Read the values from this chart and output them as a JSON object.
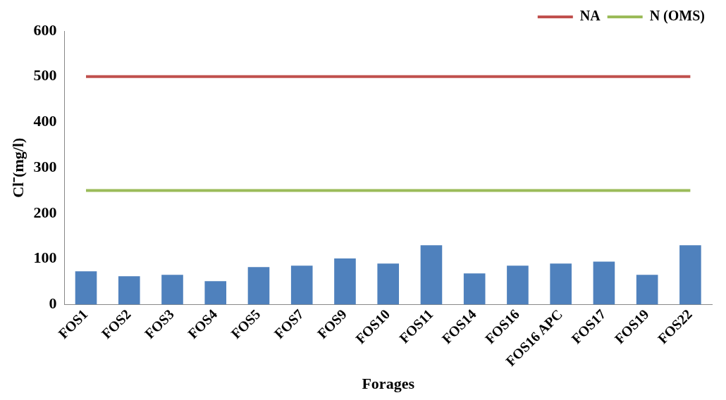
{
  "chart_data": {
    "type": "bar",
    "xlabel": "Forages",
    "ylabel": "Cl⁻(mg/l)",
    "categories": [
      "FOS1",
      "FOS2",
      "FOS3",
      "FOS4",
      "FOS5",
      "FOS7",
      "FOS9",
      "FOS10",
      "FOS11",
      "FOS14",
      "FOS16",
      "FOS16 APC",
      "FOS17",
      "FOS19",
      "FOS22"
    ],
    "series": [
      {
        "color": "#4f81bd",
        "values": [
          73,
          62,
          65,
          51,
          82,
          85,
          101,
          90,
          130,
          68,
          85,
          90,
          94,
          65,
          130
        ]
      },
      {
        "name": "NA",
        "type": "line",
        "color": "#c0504d",
        "values": [
          500,
          500,
          500,
          500,
          500,
          500,
          500,
          500,
          500,
          500,
          500,
          500,
          500,
          500,
          500
        ]
      },
      {
        "name": "N (OMS)",
        "type": "line",
        "color": "#9bbb59",
        "values": [
          250,
          250,
          250,
          250,
          250,
          250,
          250,
          250,
          250,
          250,
          250,
          250,
          250,
          250,
          250
        ]
      }
    ],
    "ylim": [
      0,
      600
    ],
    "yticks": [
      0,
      100,
      200,
      300,
      400,
      500,
      600
    ],
    "grid": false,
    "legend": "top right",
    "marker": "none"
  }
}
